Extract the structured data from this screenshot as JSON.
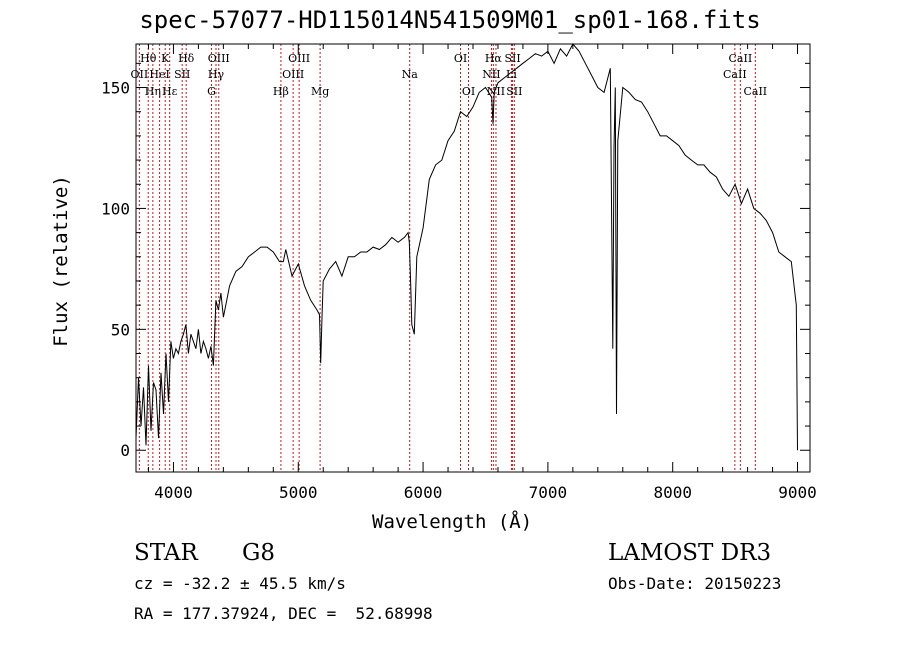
{
  "chart_data": {
    "type": "line",
    "title": "spec-57077-HD115014N541509M01_sp01-168.fits",
    "xlabel": "Wavelength (Å)",
    "ylabel": "Flux (relative)",
    "xlim": [
      3700,
      9100
    ],
    "ylim": [
      -9,
      168
    ],
    "xticks": [
      4000,
      5000,
      6000,
      7000,
      8000,
      9000
    ],
    "yticks": [
      0,
      50,
      100,
      150
    ],
    "series": [
      {
        "x": [
          3700,
          3720,
          3740,
          3760,
          3780,
          3800,
          3820,
          3840,
          3860,
          3880,
          3900,
          3920,
          3940,
          3960,
          3980,
          4000,
          4020,
          4040,
          4060,
          4080,
          4100,
          4120,
          4140,
          4160,
          4180,
          4200,
          4220,
          4240,
          4260,
          4280,
          4300,
          4320,
          4340,
          4360,
          4380,
          4400,
          4450,
          4500,
          4550,
          4600,
          4650,
          4700,
          4750,
          4800,
          4850,
          4880,
          4900,
          4950,
          5000,
          5050,
          5100,
          5150,
          5170,
          5180,
          5190,
          5200,
          5250,
          5300,
          5350,
          5400,
          5450,
          5500,
          5550,
          5600,
          5650,
          5700,
          5750,
          5800,
          5850,
          5880,
          5890,
          5900,
          5910,
          5930,
          5950,
          6000,
          6050,
          6100,
          6150,
          6200,
          6250,
          6300,
          6350,
          6400,
          6450,
          6500,
          6550,
          6560,
          6570,
          6600,
          6650,
          6700,
          6750,
          6800,
          6850,
          6900,
          6950,
          7000,
          7050,
          7100,
          7150,
          7200,
          7250,
          7300,
          7350,
          7400,
          7450,
          7500,
          7520,
          7530,
          7540,
          7550,
          7560,
          7600,
          7650,
          7700,
          7750,
          7800,
          7850,
          7900,
          7950,
          8000,
          8050,
          8100,
          8150,
          8200,
          8250,
          8300,
          8350,
          8400,
          8450,
          8500,
          8550,
          8600,
          8650,
          8700,
          8750,
          8800,
          8850,
          8900,
          8950,
          8990,
          9000
        ],
        "y": [
          5,
          30,
          10,
          26,
          2,
          35,
          8,
          28,
          25,
          5,
          32,
          15,
          40,
          20,
          45,
          38,
          42,
          40,
          45,
          48,
          52,
          40,
          48,
          45,
          42,
          50,
          40,
          45,
          42,
          38,
          43,
          35,
          62,
          58,
          65,
          55,
          68,
          74,
          76,
          80,
          82,
          84,
          84,
          82,
          78,
          78,
          83,
          72,
          77,
          68,
          62,
          58,
          56,
          36,
          55,
          70,
          75,
          78,
          72,
          80,
          80,
          82,
          82,
          84,
          83,
          85,
          88,
          86,
          88,
          90,
          86,
          70,
          52,
          48,
          80,
          92,
          112,
          118,
          120,
          128,
          132,
          140,
          138,
          142,
          148,
          150,
          146,
          135,
          148,
          152,
          154,
          156,
          158,
          160,
          162,
          164,
          163,
          165,
          160,
          166,
          163,
          168,
          165,
          160,
          155,
          150,
          148,
          158,
          42,
          125,
          150,
          15,
          128,
          150,
          148,
          145,
          144,
          140,
          135,
          130,
          130,
          128,
          126,
          122,
          120,
          118,
          118,
          115,
          113,
          108,
          105,
          110,
          102,
          108,
          100,
          98,
          95,
          90,
          82,
          80,
          78,
          60,
          0
        ]
      }
    ],
    "lines": [
      {
        "name": "Hθ",
        "x": 3798,
        "row": 0
      },
      {
        "name": "OII",
        "x": 3727,
        "row": 1
      },
      {
        "name": "Hη",
        "x": 3835,
        "row": 2
      },
      {
        "name": "K",
        "x": 3934,
        "row": 0
      },
      {
        "name": "HeI",
        "x": 3889,
        "row": 1
      },
      {
        "name": "Hε",
        "x": 3970,
        "row": 2
      },
      {
        "name": "Hδ",
        "x": 4102,
        "row": 0
      },
      {
        "name": "SII",
        "x": 4070,
        "row": 1
      },
      {
        "name": "OIII",
        "x": 4363,
        "row": 0
      },
      {
        "name": "Hγ",
        "x": 4341,
        "row": 1
      },
      {
        "name": "G",
        "x": 4305,
        "row": 2
      },
      {
        "name": "Hβ",
        "x": 4861,
        "row": 2
      },
      {
        "name": "OIII",
        "x": 5007,
        "row": 0
      },
      {
        "name": "OIII",
        "x": 4959,
        "row": 1
      },
      {
        "name": "Mg",
        "x": 5175,
        "row": 2
      },
      {
        "name": "Na",
        "x": 5893,
        "row": 1
      },
      {
        "name": "OI",
        "x": 6300,
        "row": 0
      },
      {
        "name": "OI",
        "x": 6364,
        "row": 2
      },
      {
        "name": "Hα",
        "x": 6563,
        "row": 0
      },
      {
        "name": "NII",
        "x": 6548,
        "row": 1
      },
      {
        "name": "NII",
        "x": 6584,
        "row": 2
      },
      {
        "name": "SII",
        "x": 6717,
        "row": 0
      },
      {
        "name": "Li",
        "x": 6708,
        "row": 1
      },
      {
        "name": "SII",
        "x": 6731,
        "row": 2
      },
      {
        "name": "CaII",
        "x": 8542,
        "row": 0
      },
      {
        "name": "CaII",
        "x": 8498,
        "row": 1
      },
      {
        "name": "CaII",
        "x": 8662,
        "row": 2
      }
    ]
  },
  "info": {
    "class": "STAR",
    "subclass": "G8",
    "survey": "LAMOST DR3",
    "cz": "cz = -32.2 ± 45.5 km/s",
    "obs_date": "Obs-Date: 20150223",
    "radec": "RA = 177.37924, DEC =  52.68998"
  }
}
